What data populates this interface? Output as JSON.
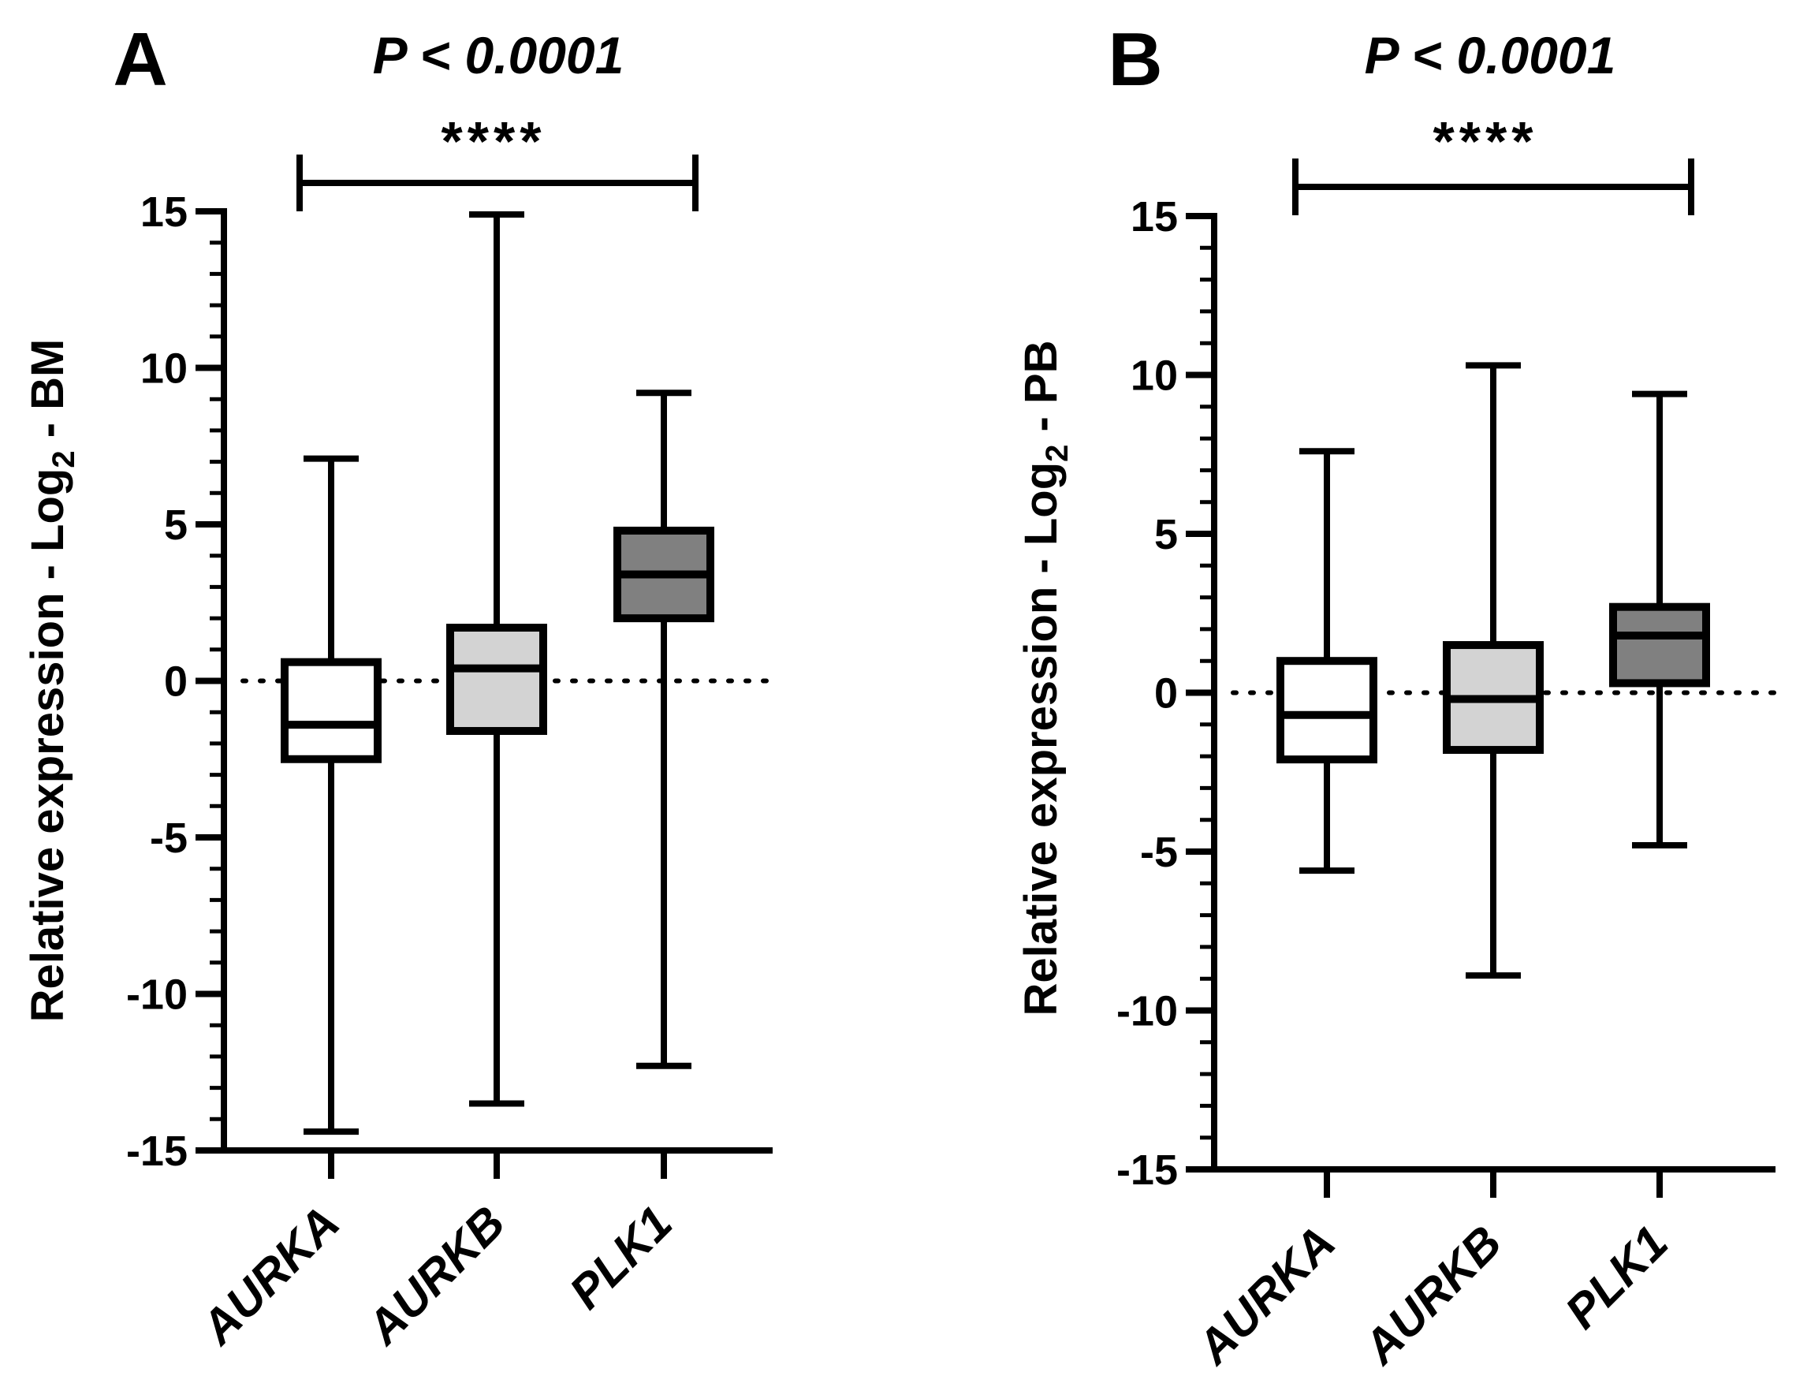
{
  "colors": {
    "ink": "#000000",
    "box_aurka": "#ffffff",
    "box_aurkb": "#d3d3d3",
    "box_plk1": "#808080"
  },
  "chart_data": [
    {
      "panel": "A",
      "type": "box",
      "title": "P < 0.0001",
      "significance": "****",
      "significance_span": [
        "AURKA",
        "PLK1"
      ],
      "ylabel": {
        "main": "Relative expression - Log",
        "sub": "2",
        "suffix": " - BM"
      },
      "ylim": [
        -15,
        15
      ],
      "yticks": [
        15,
        10,
        5,
        0,
        -5,
        -10,
        -15
      ],
      "ytick_labels": [
        "15",
        "10",
        "5",
        "0",
        "-5",
        "-10",
        "-15"
      ],
      "reference_line": 0,
      "categories": [
        "AURKA",
        "AURKB",
        "PLK1"
      ],
      "series": [
        {
          "name": "AURKA",
          "min": -14.4,
          "q1": -2.5,
          "median": -1.4,
          "q3": 0.6,
          "max": 7.1
        },
        {
          "name": "AURKB",
          "min": -13.5,
          "q1": -1.6,
          "median": 0.4,
          "q3": 1.7,
          "max": 14.9
        },
        {
          "name": "PLK1",
          "min": -12.3,
          "q1": 2.0,
          "median": 3.4,
          "q3": 4.8,
          "max": 9.2
        }
      ]
    },
    {
      "panel": "B",
      "type": "box",
      "title": "P < 0.0001",
      "significance": "****",
      "significance_span": [
        "AURKA",
        "PLK1"
      ],
      "ylabel": {
        "main": "Relative expression - Log",
        "sub": "2",
        "suffix": " - PB"
      },
      "ylim": [
        -15,
        15
      ],
      "yticks": [
        15,
        10,
        5,
        0,
        -5,
        -10,
        -15
      ],
      "ytick_labels": [
        "15",
        "10",
        "5",
        "0",
        "-5",
        "-10",
        "-15"
      ],
      "reference_line": 0,
      "categories": [
        "AURKA",
        "AURKB",
        "PLK1"
      ],
      "series": [
        {
          "name": "AURKA",
          "min": -5.6,
          "q1": -2.1,
          "median": -0.7,
          "q3": 1.0,
          "max": 7.6
        },
        {
          "name": "AURKB",
          "min": -8.9,
          "q1": -1.8,
          "median": -0.2,
          "q3": 1.5,
          "max": 10.3
        },
        {
          "name": "PLK1",
          "min": -4.8,
          "q1": 0.3,
          "median": 1.8,
          "q3": 2.7,
          "max": 9.4
        }
      ]
    }
  ]
}
